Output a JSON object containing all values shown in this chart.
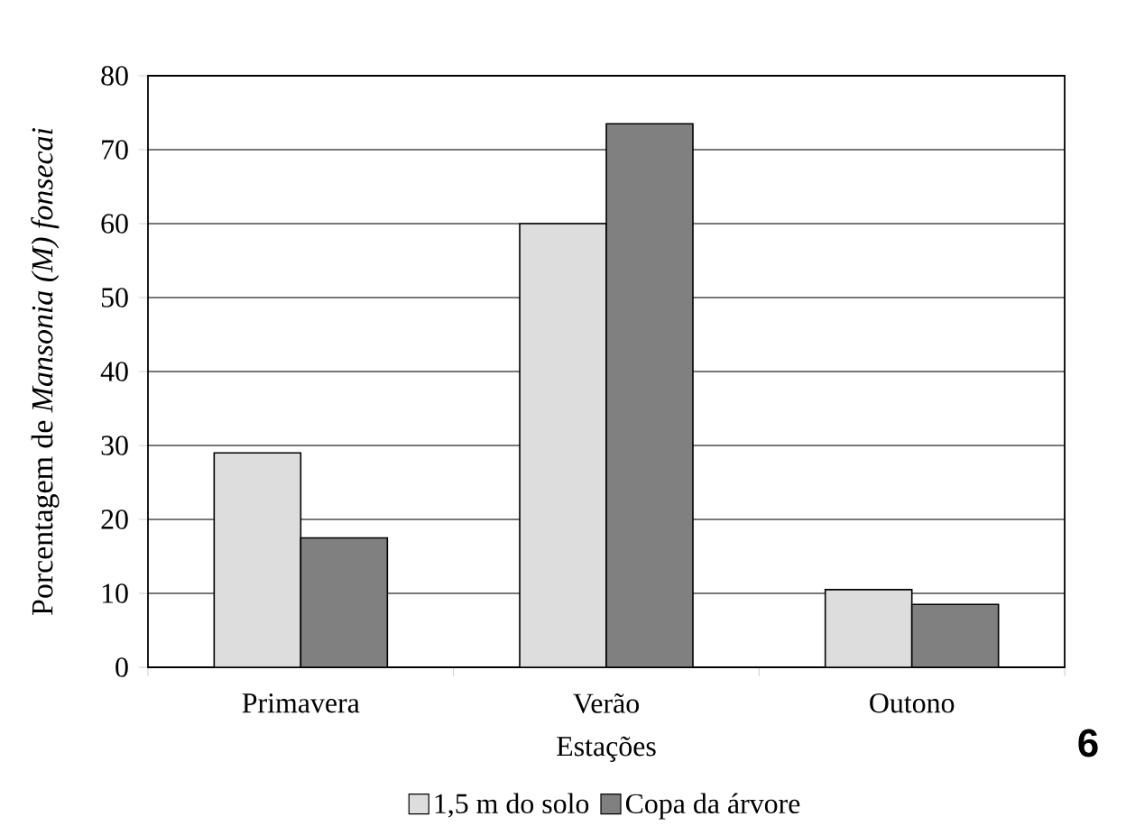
{
  "chart_data": {
    "type": "bar",
    "xlabel": "Estações",
    "ylabel": "Porcentagem de *Mansonia (M) fonsecai*",
    "categories": [
      "Primavera",
      "Verão",
      "Outono"
    ],
    "series": [
      {
        "name": "1,5 m do solo",
        "color": "#dddddd",
        "values": [
          29,
          60,
          10.5
        ]
      },
      {
        "name": "Copa da árvore",
        "color": "#808080",
        "values": [
          17.5,
          73.5,
          8.5
        ]
      }
    ],
    "ylim": [
      0,
      80
    ],
    "yticks": [
      0,
      10,
      20,
      30,
      40,
      50,
      60,
      70,
      80
    ],
    "grid": "y",
    "legend": "bottom",
    "annotations": [
      "6"
    ]
  }
}
